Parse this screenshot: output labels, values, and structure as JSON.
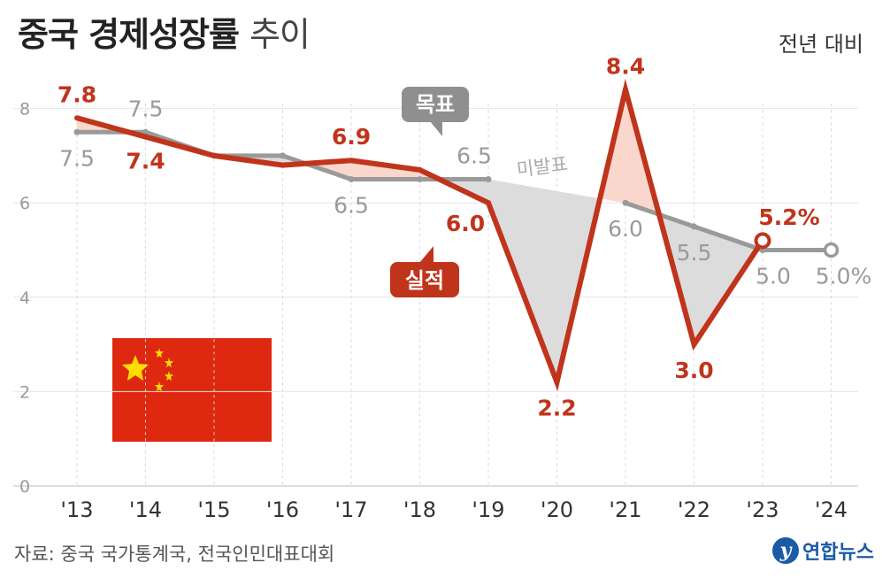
{
  "title": "중국 경제성장률",
  "subtitle": "추이",
  "unit_note": "전년 대비",
  "source": "자료: 중국 국가통계국, 전국인민대표대회",
  "logo_text": "연합뉴스",
  "logo_icon": "yonhap-logo-icon",
  "flag_icon": "china-flag-icon",
  "colors": {
    "actual": "#c0341c",
    "target": "#9a9a9a",
    "above_fill": "#f9d7cc",
    "below_fill": "#dcdcdc"
  },
  "chart_data": {
    "type": "line",
    "categories": [
      "'13",
      "'14",
      "'15",
      "'16",
      "'17",
      "'18",
      "'19",
      "'20",
      "'21",
      "'22",
      "'23",
      "'24"
    ],
    "ylim": [
      0,
      8
    ],
    "yticks": [
      "0",
      "2",
      "4",
      "6",
      "8"
    ],
    "grid": true,
    "series": [
      {
        "name": "실적",
        "values": [
          7.8,
          7.4,
          7.0,
          6.8,
          6.9,
          6.7,
          6.0,
          2.2,
          8.4,
          3.0,
          5.2,
          null
        ],
        "labels": [
          "7.8",
          "7.4",
          "",
          "",
          "6.9",
          "",
          "6.0",
          "2.2",
          "8.4",
          "3.0",
          "5.2%",
          ""
        ]
      },
      {
        "name": "목표",
        "values": [
          7.5,
          7.5,
          7.0,
          7.0,
          6.5,
          6.5,
          6.5,
          null,
          6.0,
          5.5,
          5.0,
          5.0
        ],
        "labels": [
          "7.5",
          "7.5",
          "",
          "",
          "6.5",
          "",
          "6.5",
          "",
          "6.0",
          "5.5",
          "5.0",
          "5.0%"
        ]
      }
    ],
    "annotations": [
      "미발표"
    ]
  }
}
